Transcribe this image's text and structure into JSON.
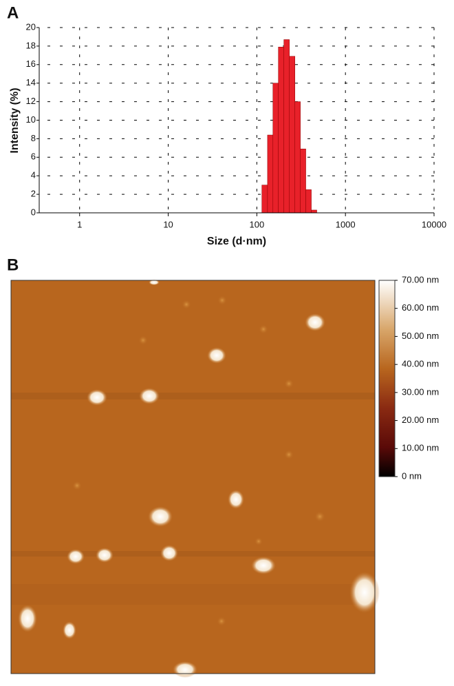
{
  "chart_data": [
    {
      "type": "histogram",
      "panel_label": "A",
      "xlabel": "Size (d·nm)",
      "ylabel": "Intensity (%)",
      "bins": [
        114,
        132,
        152,
        175,
        202,
        233,
        269,
        310,
        357,
        412,
        475
      ],
      "values": [
        3.0,
        8.4,
        14.0,
        17.9,
        18.7,
        16.9,
        12.0,
        6.9,
        2.5,
        0.3
      ],
      "color": "#e8212a",
      "log_x": true,
      "grid": true,
      "xlim": [
        0.35,
        10000
      ],
      "xticks": [
        1,
        10,
        100,
        1000,
        10000
      ],
      "ylim": [
        0,
        20
      ],
      "yticks": [
        0,
        2,
        4,
        6,
        8,
        10,
        12,
        14,
        16,
        18,
        20
      ]
    },
    {
      "type": "image",
      "panel_label": "B",
      "clim": [
        0,
        70
      ],
      "cticks": [
        {
          "value": 70,
          "label": "70.00 nm"
        },
        {
          "value": 60,
          "label": "60.00 nm"
        },
        {
          "value": 50,
          "label": "50.00 nm"
        },
        {
          "value": 40,
          "label": "40.00 nm"
        },
        {
          "value": 30,
          "label": "30.00 nm"
        },
        {
          "value": 20,
          "label": "20.00 nm"
        },
        {
          "value": 10,
          "label": "10.00 nm"
        },
        {
          "value": 0,
          "label": "0 nm"
        }
      ]
    }
  ]
}
